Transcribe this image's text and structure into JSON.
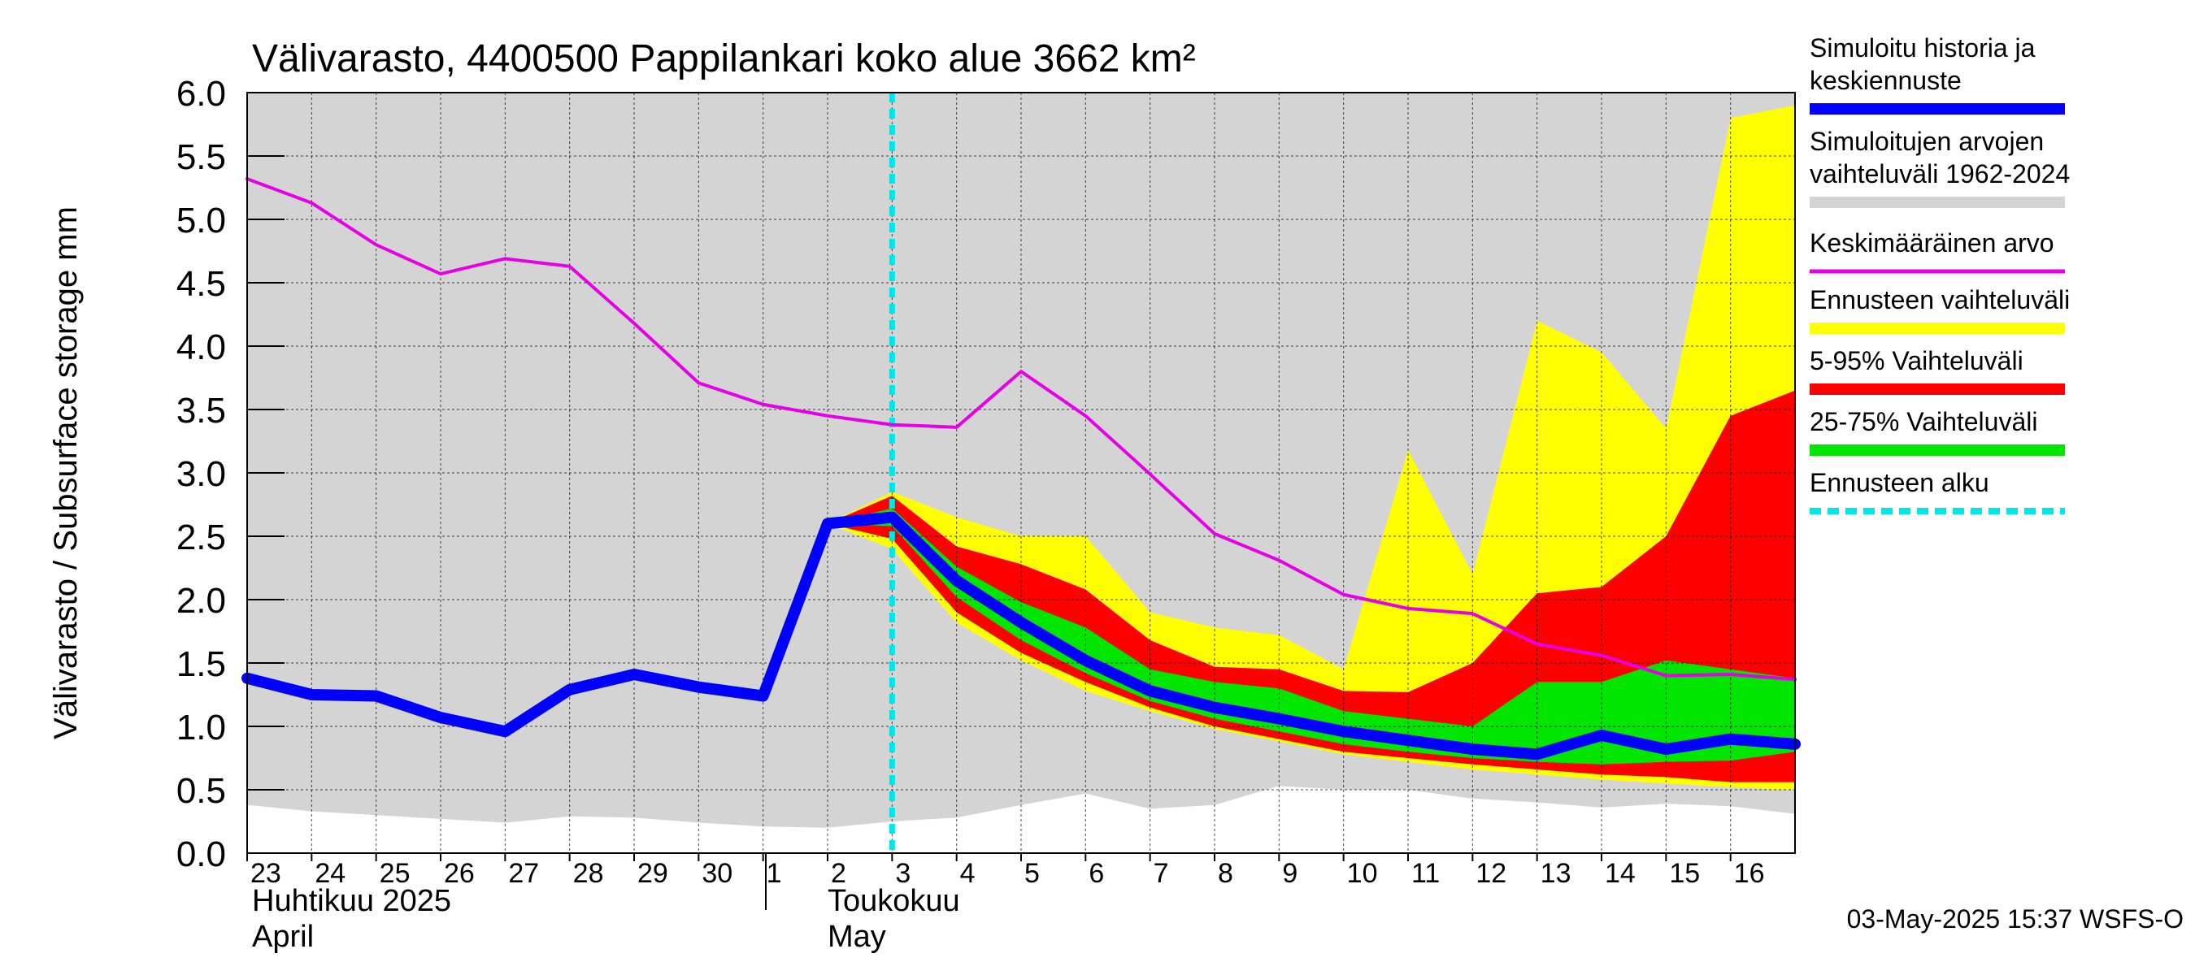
{
  "chart_data": {
    "type": "area",
    "title": "Välivarasto, 4400500 Pappilankari koko alue 3662 km²",
    "ylabel": "Välivarasto / Subsurface storage  mm",
    "ylim": [
      0,
      6
    ],
    "yticks": [
      "0.0",
      "0.5",
      "1.0",
      "1.5",
      "2.0",
      "2.5",
      "3.0",
      "3.5",
      "4.0",
      "4.5",
      "5.0",
      "5.5",
      "6.0"
    ],
    "grid": true,
    "legend_position": "right",
    "x_day_labels": [
      "23",
      "24",
      "25",
      "26",
      "27",
      "28",
      "29",
      "30",
      "1",
      "2",
      "3",
      "4",
      "5",
      "6",
      "7",
      "8",
      "9",
      "10",
      "11",
      "12",
      "13",
      "14",
      "15",
      "16"
    ],
    "month_labels": {
      "april_fi": "Huhtikuu  2025",
      "april_en": "April",
      "may_fi": "Toukokuu",
      "may_en": "May"
    },
    "forecast_start_x": 10,
    "footer": "03-May-2025 15:37 WSFS-O",
    "history_range": {
      "x": [
        0,
        1,
        2,
        3,
        4,
        5,
        6,
        7,
        8,
        9,
        10,
        11,
        12,
        13,
        14,
        15,
        16,
        17,
        18,
        19,
        20,
        21,
        22,
        23,
        24
      ],
      "upper": [
        6.0,
        6.0,
        6.0,
        6.0,
        6.0,
        6.0,
        6.0,
        6.0,
        6.0,
        6.0,
        6.0,
        6.0,
        6.0,
        6.0,
        6.0,
        6.0,
        6.0,
        6.0,
        6.0,
        6.0,
        6.0,
        6.0,
        6.0,
        6.0,
        6.0
      ],
      "lower": [
        0.38,
        0.33,
        0.3,
        0.27,
        0.24,
        0.29,
        0.28,
        0.24,
        0.21,
        0.2,
        0.25,
        0.28,
        0.38,
        0.47,
        0.35,
        0.38,
        0.53,
        0.5,
        0.5,
        0.43,
        0.4,
        0.36,
        0.39,
        0.37,
        0.31
      ]
    },
    "series": [
      {
        "name": "Ennusteen vaihteluväli",
        "kind": "band",
        "x": [
          9,
          10,
          11,
          12,
          13,
          14,
          15,
          16,
          17,
          18,
          19,
          20,
          21,
          22,
          23,
          24
        ],
        "upper": [
          2.6,
          2.85,
          2.65,
          2.5,
          2.5,
          1.9,
          1.78,
          1.72,
          1.45,
          3.18,
          2.2,
          4.2,
          3.95,
          3.35,
          5.8,
          5.9
        ],
        "lower": [
          2.6,
          2.4,
          1.82,
          1.52,
          1.28,
          1.12,
          0.98,
          0.88,
          0.78,
          0.72,
          0.66,
          0.62,
          0.58,
          0.55,
          0.52,
          0.5
        ]
      },
      {
        "name": "5-95% Vaihteluväli",
        "kind": "band",
        "x": [
          9,
          10,
          11,
          12,
          13,
          14,
          15,
          16,
          17,
          18,
          19,
          20,
          21,
          22,
          23,
          24
        ],
        "upper": [
          2.6,
          2.82,
          2.42,
          2.28,
          2.08,
          1.68,
          1.47,
          1.45,
          1.28,
          1.27,
          1.5,
          2.05,
          2.1,
          2.5,
          3.45,
          3.65
        ],
        "lower": [
          2.6,
          2.48,
          1.9,
          1.58,
          1.35,
          1.15,
          1.0,
          0.9,
          0.8,
          0.75,
          0.7,
          0.66,
          0.62,
          0.6,
          0.56,
          0.56
        ]
      },
      {
        "name": "25-75% Vaihteluväli",
        "kind": "band",
        "x": [
          9,
          10,
          11,
          12,
          13,
          14,
          15,
          16,
          17,
          18,
          19,
          20,
          21,
          22,
          23,
          24
        ],
        "upper": [
          2.6,
          2.72,
          2.26,
          1.98,
          1.78,
          1.45,
          1.35,
          1.3,
          1.12,
          1.06,
          1.0,
          1.35,
          1.35,
          1.52,
          1.45,
          1.38
        ],
        "lower": [
          2.6,
          2.58,
          2.02,
          1.68,
          1.42,
          1.2,
          1.06,
          0.96,
          0.86,
          0.8,
          0.75,
          0.72,
          0.7,
          0.72,
          0.73,
          0.8
        ]
      },
      {
        "name": "Keskimääräinen arvo",
        "kind": "line",
        "color": "#e600e6",
        "x": [
          0,
          1,
          2,
          3,
          4,
          5,
          6,
          7,
          8,
          9,
          10,
          11,
          12,
          13,
          14,
          15,
          16,
          17,
          18,
          19,
          20,
          21,
          22,
          23,
          24
        ],
        "values": [
          5.32,
          5.13,
          4.8,
          4.57,
          4.69,
          4.63,
          4.18,
          3.71,
          3.54,
          3.45,
          3.38,
          3.36,
          3.8,
          3.45,
          2.99,
          2.52,
          2.31,
          2.04,
          1.93,
          1.89,
          1.65,
          1.56,
          1.4,
          1.41,
          1.37
        ]
      },
      {
        "name": "Simuloitu historia ja keskiennuste",
        "kind": "line",
        "color": "#0000ff",
        "x": [
          0,
          1,
          2,
          3,
          4,
          5,
          6,
          7,
          8,
          9,
          10,
          11,
          12,
          13,
          14,
          15,
          16,
          17,
          18,
          19,
          20,
          21,
          22,
          23,
          24
        ],
        "values": [
          1.38,
          1.25,
          1.24,
          1.07,
          0.96,
          1.29,
          1.41,
          1.31,
          1.24,
          2.6,
          2.65,
          2.15,
          1.82,
          1.52,
          1.28,
          1.15,
          1.06,
          0.96,
          0.89,
          0.82,
          0.78,
          0.93,
          0.82,
          0.9,
          0.86
        ]
      }
    ],
    "legend": [
      {
        "label": "Simuloitu historia ja keskiennuste",
        "color": "#0000ff",
        "style": "thick"
      },
      {
        "label": "Simuloitujen arvojen vaihteluväli 1962-2024",
        "color": "#d4d4d4",
        "style": "thick"
      },
      {
        "label": "Keskimääräinen arvo",
        "color": "#e600e6",
        "style": "thin"
      },
      {
        "label": "Ennusteen vaihteluväli",
        "color": "#ffff00",
        "style": "thick"
      },
      {
        "label": "5-95% Vaihteluväli",
        "color": "#ff0000",
        "style": "thick"
      },
      {
        "label": "25-75% Vaihteluväli",
        "color": "#00e600",
        "style": "thick"
      },
      {
        "label": "Ennusteen alku",
        "color": "#00e5e5",
        "style": "dashed"
      }
    ]
  }
}
